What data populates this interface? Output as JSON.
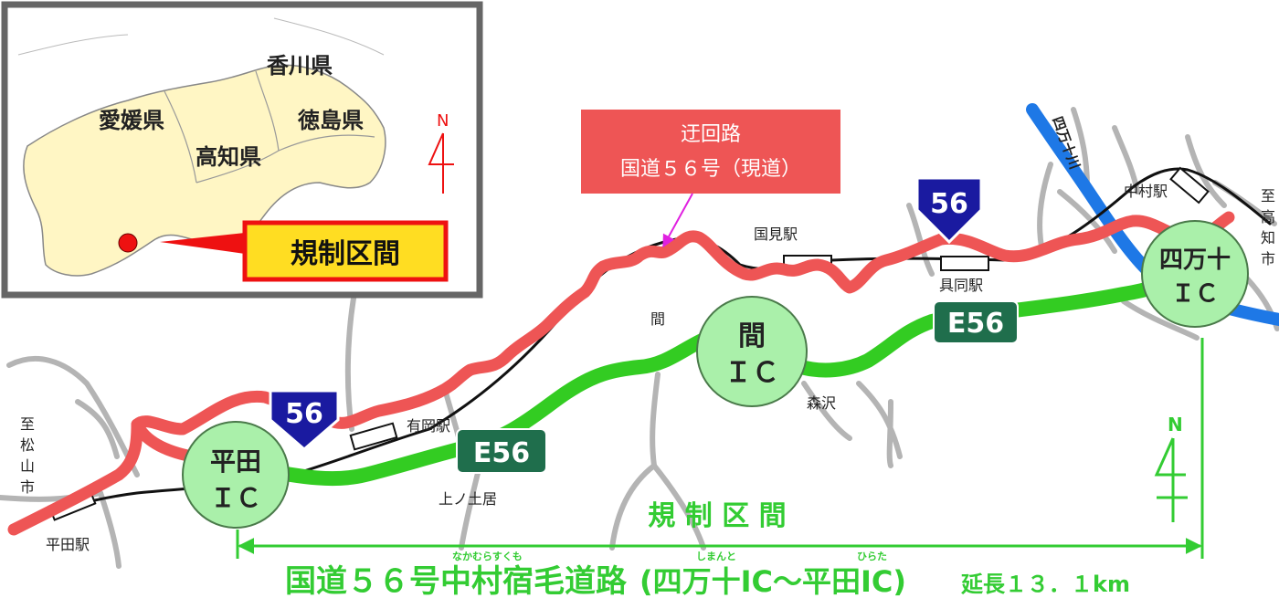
{
  "colors": {
    "detour_route": "#ee5555",
    "expressway": "#33cc22",
    "railway": "#111111",
    "background_roads": "#b4b4b4",
    "ic_fill": "#aaf0aa",
    "e56_sign": "#1f6e4c",
    "route56_sign": "#1a1aa0",
    "river": "#1e78e6",
    "callout_red": "#ee1111",
    "callout_yellow": "#ffdd22",
    "section_green": "#33cc33"
  },
  "inset": {
    "prefectures": [
      "香川県",
      "愛媛県",
      "徳島県",
      "高知県"
    ],
    "north": "N",
    "callout": "規制区間"
  },
  "detour_box": {
    "line1": "迂回路",
    "line2": "国道５６号（現道）"
  },
  "interchanges": {
    "hirata": [
      "平田",
      "ＩＣ"
    ],
    "hazama": [
      "間",
      "ＩＣ"
    ],
    "shimanto": [
      "四万十",
      "ＩＣ"
    ]
  },
  "route_signs": {
    "route56_left": "56",
    "route56_right": "56",
    "e56_left": "E56",
    "e56_right": "E56"
  },
  "stations": {
    "hirata": "平田駅",
    "arioka": "有岡駅",
    "kunimi": "国見駅",
    "gudo": "具同駅",
    "nakamura": "中村駅"
  },
  "places": {
    "kaminodoi": "上ノ土居",
    "hazama": "間",
    "morisawa": "森沢",
    "river": "四万十川"
  },
  "destinations": {
    "matsuyama": [
      "至",
      "松",
      "山",
      "市"
    ],
    "kochi": [
      "至",
      "高",
      "知",
      "市"
    ]
  },
  "section_label": "規 制 区 間",
  "north_label": "N",
  "footer": {
    "title": "国道５６号中村宿毛道路",
    "range": "(四万十IC～平田IC)",
    "length": "延長１３．１km",
    "ruby_nakamurasukumo": "なかむらすくも",
    "ruby_shimanto": "しまんと",
    "ruby_hirata": "ひらた"
  }
}
